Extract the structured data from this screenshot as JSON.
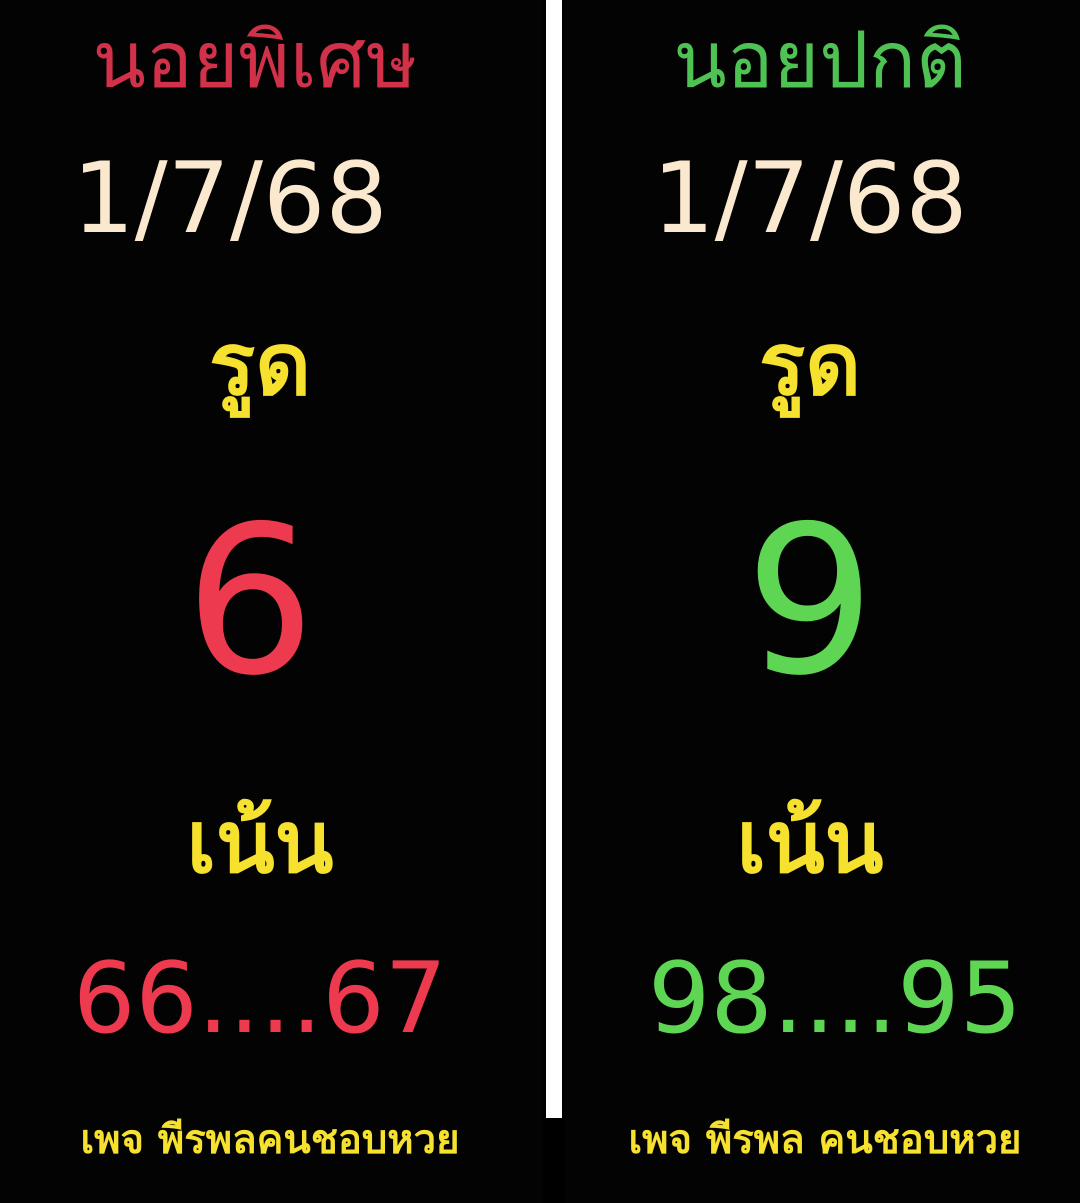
{
  "left_panel": {
    "title": "นอยพิเศษ",
    "date": "1/7/68",
    "label_top": "รูด",
    "main_number": "6",
    "label_bottom": "เน้น",
    "pairs": "66....67",
    "footer": "เพจ พีรพลคนชอบหวย",
    "title_color": "#d2314a",
    "number_color": "#ee3a4e"
  },
  "right_panel": {
    "title": "นอยปกติ",
    "date": "1/7/68",
    "label_top": "รูด",
    "main_number": "9",
    "label_bottom": "เน้น",
    "pairs": "98....95",
    "footer": "เพจ พีรพล คนชอบหวย",
    "title_color": "#4fc254",
    "number_color": "#5ed653"
  },
  "colors": {
    "background": "#000000",
    "date_text": "#fbe9cf",
    "label_text": "#f6e12e",
    "divider": "#ffffff"
  }
}
